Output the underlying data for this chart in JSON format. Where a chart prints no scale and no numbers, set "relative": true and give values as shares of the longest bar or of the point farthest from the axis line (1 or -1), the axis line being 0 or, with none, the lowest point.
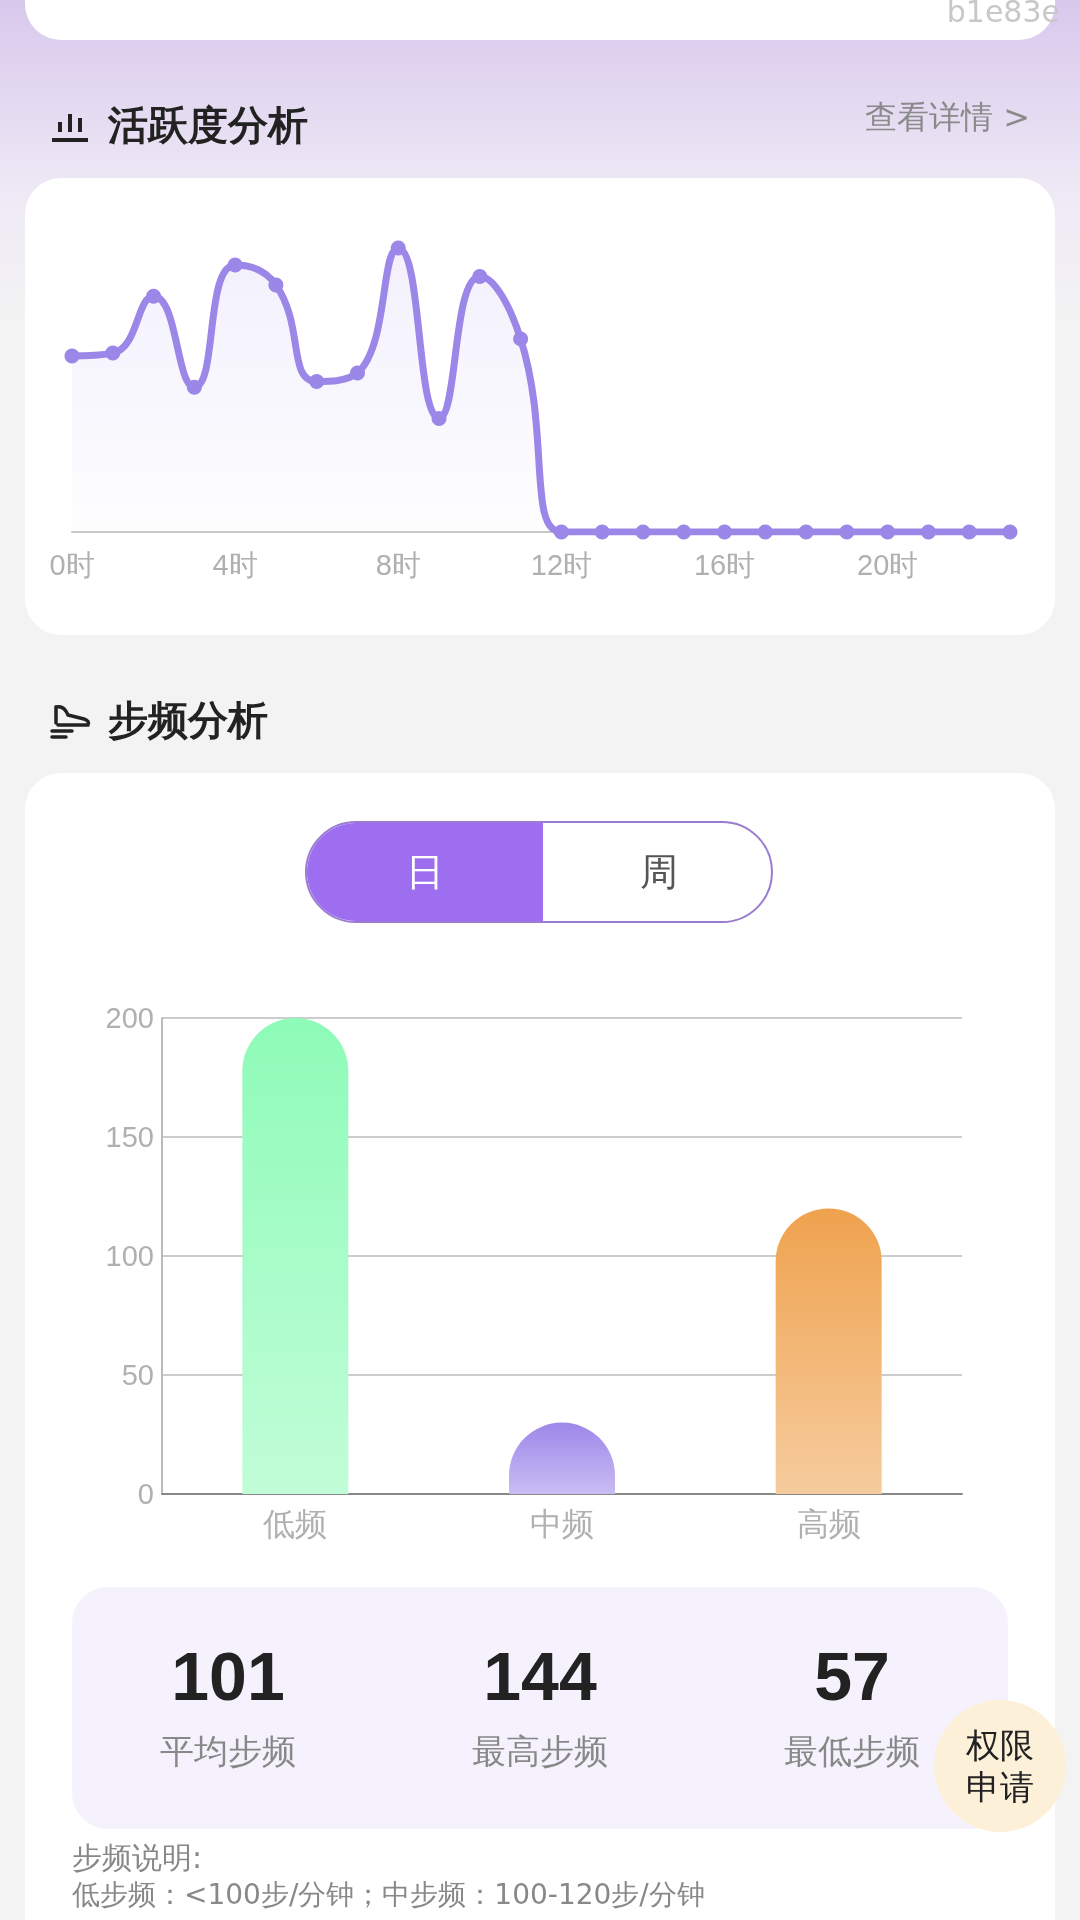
{
  "chart_data": [
    {
      "type": "line",
      "title": "活跃度分析",
      "annotations": [
        "b1e83e",
        "查看详情 >"
      ],
      "relative": true,
      "categories": [
        "0时",
        null,
        null,
        null,
        "4时",
        null,
        null,
        null,
        "8时",
        null,
        null,
        null,
        "12时",
        null,
        null,
        null,
        "16时",
        null,
        null,
        null,
        "20时",
        null,
        null,
        null
      ],
      "values": [
        0.62,
        0.63,
        0.83,
        0.51,
        0.94,
        0.87,
        0.53,
        0.56,
        1,
        0.4,
        0.9,
        0.68,
        0,
        0,
        0,
        0,
        0,
        0,
        0,
        0,
        0,
        0,
        0,
        0
      ],
      "color": "#9b87e8",
      "marker": "circle",
      "grid": false
    },
    {
      "type": "bar",
      "title": "步频分析",
      "annotations": [
        "日",
        "周"
      ],
      "categories": [
        "低频",
        "中频",
        "高频"
      ],
      "values": [
        200,
        30,
        120
      ],
      "colors": [
        "#8efbb8",
        "#9d87ea",
        "#efa24e"
      ],
      "ylim": [
        0,
        200
      ],
      "yticks": [
        0,
        50,
        100,
        150,
        200
      ],
      "grid": "y"
    },
    {
      "type": "other",
      "categories": [
        "平均步频",
        "最高步频",
        "最低步频"
      ],
      "values": [
        101,
        144,
        57
      ],
      "data_labels": true,
      "annotations": [
        "权限申请",
        "步频说明:",
        "低步频：<100步/分钟；中步频：100-120步/分钟"
      ]
    }
  ]
}
